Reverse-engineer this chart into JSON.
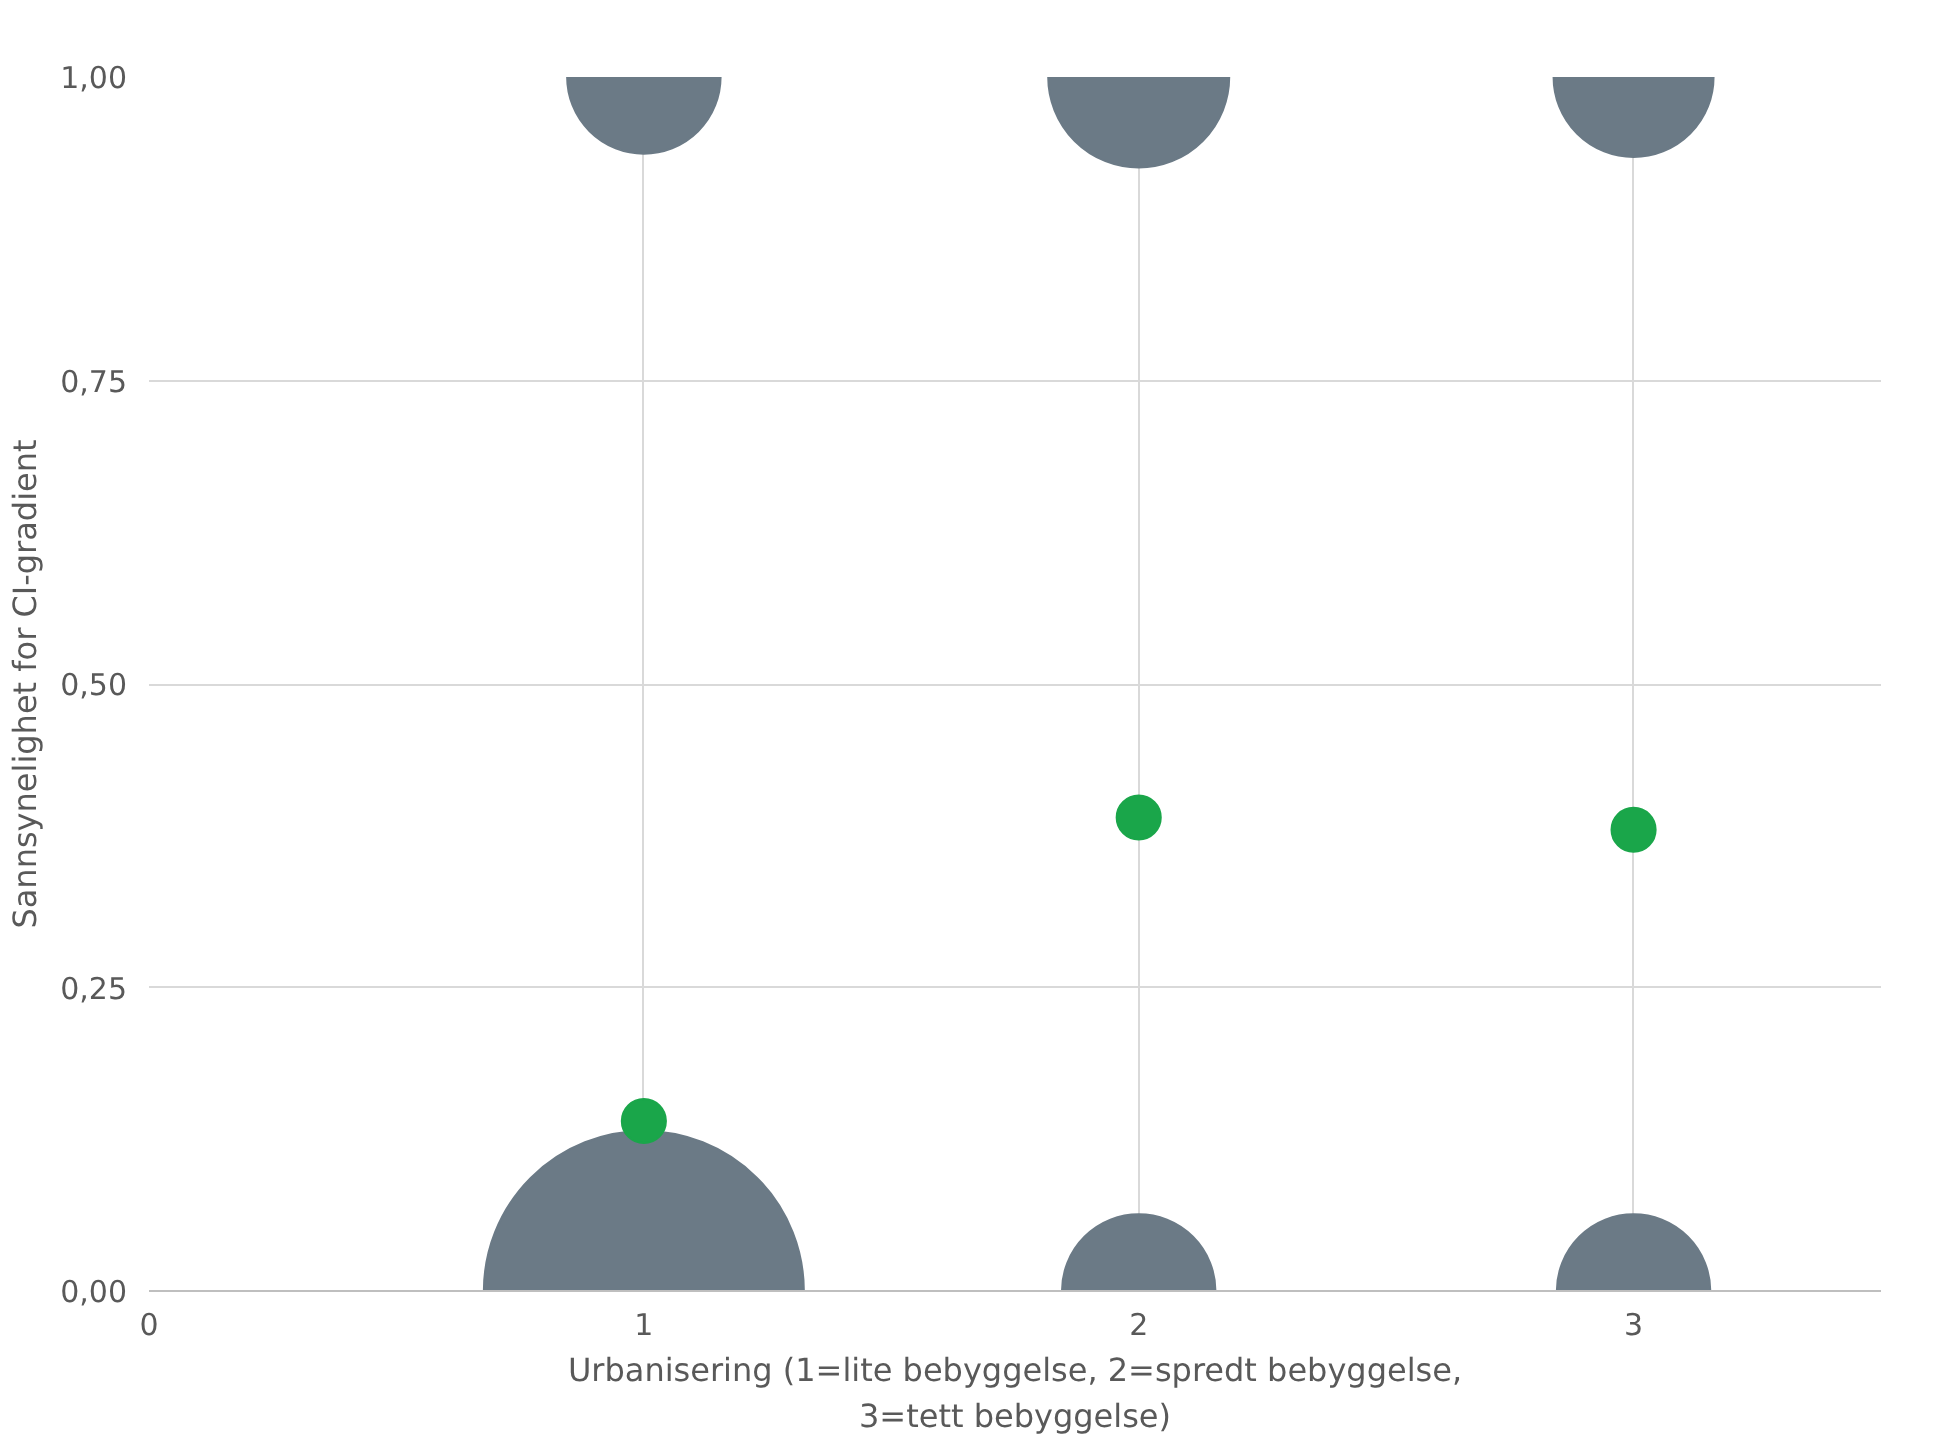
{
  "chart_data": {
    "type": "bubble",
    "xlabel": "Urbanisering (1=lite bebyggelse, 2=spredt bebyggelse, 3=tett bebyggelse)",
    "ylabel": "Sannsynelighet for CI-gradient",
    "xlim": [
      0,
      3.5
    ],
    "xticks": [
      0,
      1,
      2,
      3
    ],
    "ylim": [
      0,
      1
    ],
    "yticks": [
      {
        "value": 0,
        "label": "0,00"
      },
      {
        "value": 0.25,
        "label": "0,25"
      },
      {
        "value": 0.5,
        "label": "0,50"
      },
      {
        "value": 0.75,
        "label": "0,75"
      },
      {
        "value": 1,
        "label": "1,00"
      }
    ],
    "grid": true,
    "series": [
      {
        "color": "#6b7a86",
        "x": [
          1,
          2,
          3,
          1,
          2,
          3
        ],
        "values": [
          0,
          0,
          0,
          1,
          1,
          1
        ],
        "sizes": [
          1,
          0.23,
          0.23,
          0.23,
          0.32,
          0.25
        ]
      },
      {
        "color": "#1aa64a",
        "x": [
          1,
          2,
          3
        ],
        "values": [
          0.14,
          0.39,
          0.38
        ],
        "sizes": [
          0.019,
          0.019,
          0.019
        ]
      }
    ]
  }
}
